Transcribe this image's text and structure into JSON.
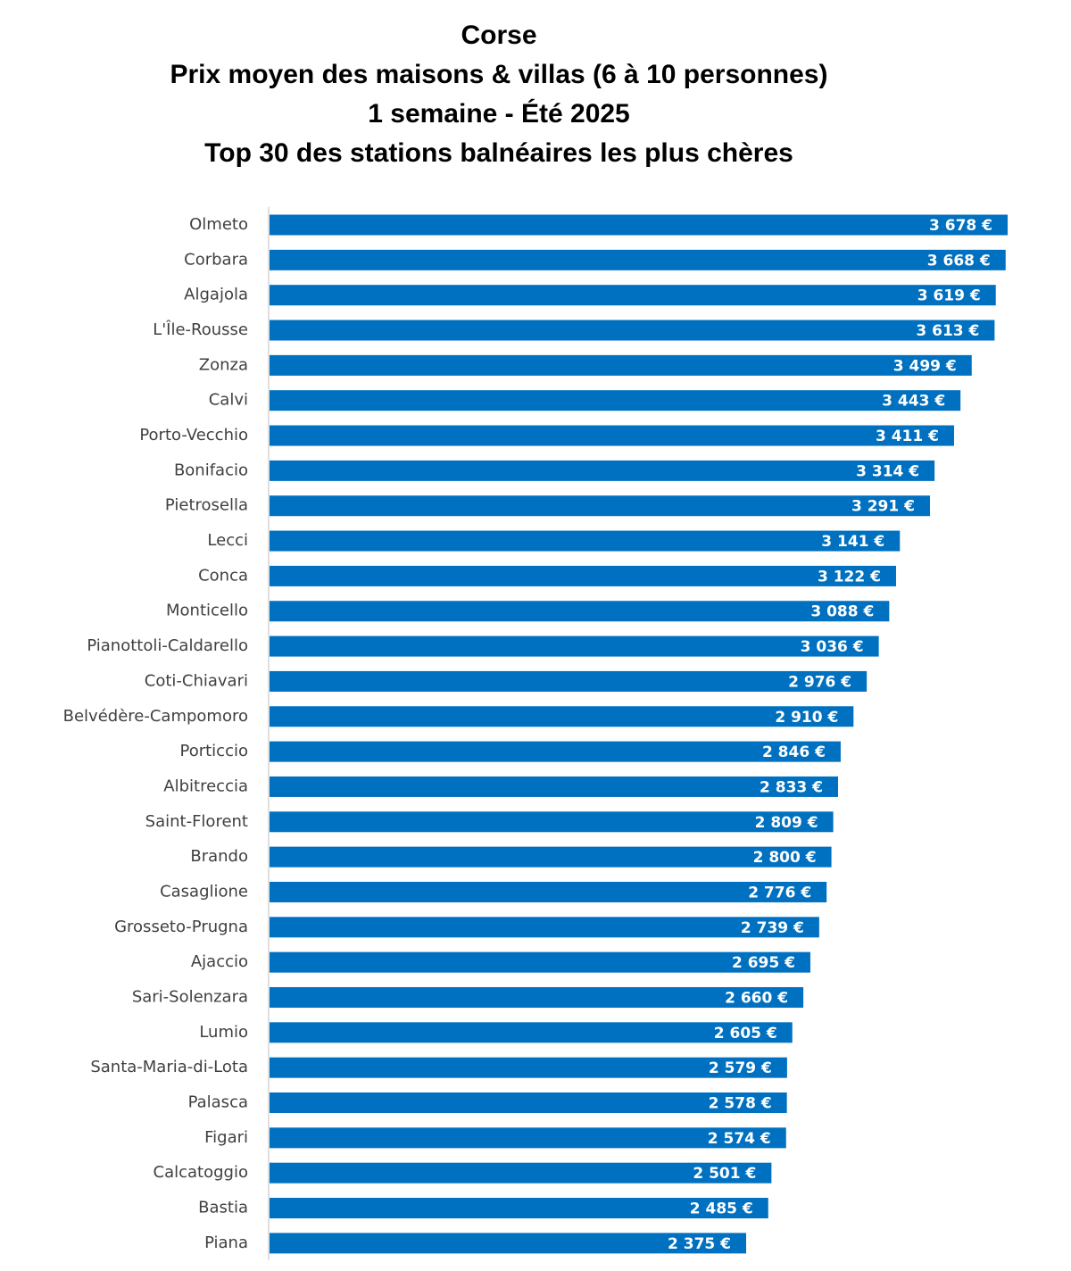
{
  "titles": {
    "line1": "Corse",
    "line2": "Prix moyen des maisons & villas (6 à 10 personnes)",
    "line3": "1 semaine - Été 2025",
    "line4": "Top 30 des stations balnéaires les plus chères"
  },
  "colors": {
    "bar": "#0070C0",
    "axis": "#BFBFBF",
    "value_label": "#FFFFFF",
    "category_label": "#404040"
  },
  "chart_data": {
    "type": "bar",
    "orientation": "horizontal",
    "title": "Corse — Prix moyen des maisons & villas (6 à 10 personnes) — 1 semaine - Été 2025 — Top 30 des stations balnéaires les plus chères",
    "categories": [
      "Olmeto",
      "Corbara",
      "Algajola",
      "L'Île-Rousse",
      "Zonza",
      "Calvi",
      "Porto-Vecchio",
      "Bonifacio",
      "Pietrosella",
      "Lecci",
      "Conca",
      "Monticello",
      "Pianottoli-Caldarello",
      "Coti-Chiavari",
      "Belvédère-Campomoro",
      "Porticcio",
      "Albitreccia",
      "Saint-Florent",
      "Brando",
      "Casaglione",
      "Grosseto-Prugna",
      "Ajaccio",
      "Sari-Solenzara",
      "Lumio",
      "Santa-Maria-di-Lota",
      "Palasca",
      "Figari",
      "Calcatoggio",
      "Bastia",
      "Piana"
    ],
    "values": [
      3678,
      3668,
      3619,
      3613,
      3499,
      3443,
      3411,
      3314,
      3291,
      3141,
      3122,
      3088,
      3036,
      2976,
      2910,
      2846,
      2833,
      2809,
      2800,
      2776,
      2739,
      2695,
      2660,
      2605,
      2579,
      2578,
      2574,
      2501,
      2485,
      2375
    ],
    "value_labels": [
      "3 678 €",
      "3 668 €",
      "3 619 €",
      "3 613 €",
      "3 499 €",
      "3 443 €",
      "3 411 €",
      "3 314 €",
      "3 291 €",
      "3 141 €",
      "3 122 €",
      "3 088 €",
      "3 036 €",
      "2 976 €",
      "2 910 €",
      "2 846 €",
      "2 833 €",
      "2 809 €",
      "2 800 €",
      "2 776 €",
      "2 739 €",
      "2 695 €",
      "2 660 €",
      "2 605 €",
      "2 579 €",
      "2 578 €",
      "2 574 €",
      "2 501 €",
      "2 485 €",
      "2 375 €"
    ],
    "unit": "€",
    "xlim": [
      0,
      3678
    ],
    "grid": false,
    "legend": "none"
  }
}
